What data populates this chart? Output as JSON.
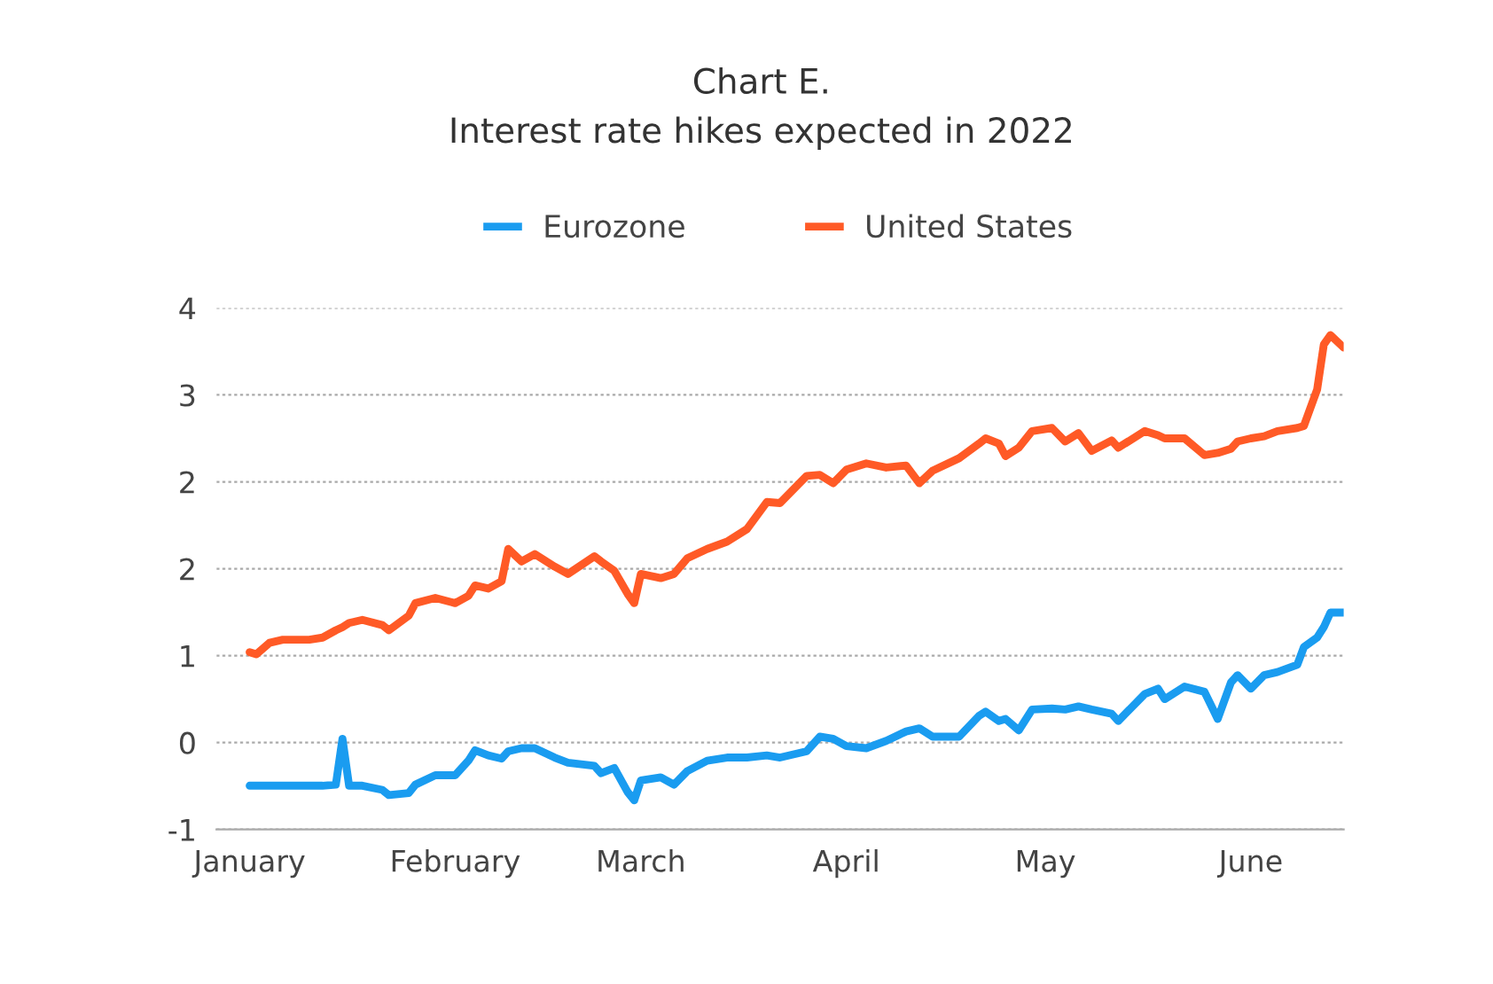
{
  "chart_data": {
    "type": "line",
    "title": "Chart E.",
    "subtitle": "Interest rate hikes expected in 2022",
    "x": [
      "2022-01-01",
      "2022-01-02",
      "2022-01-04",
      "2022-01-06",
      "2022-01-10",
      "2022-01-12",
      "2022-01-14",
      "2022-01-15",
      "2022-01-16",
      "2022-01-18",
      "2022-01-21",
      "2022-01-22",
      "2022-01-25",
      "2022-01-26",
      "2022-01-29",
      "2022-02-01",
      "2022-02-03",
      "2022-02-04",
      "2022-02-06",
      "2022-02-08",
      "2022-02-09",
      "2022-02-11",
      "2022-02-13",
      "2022-02-16",
      "2022-02-18",
      "2022-02-22",
      "2022-02-23",
      "2022-02-25",
      "2022-02-27",
      "2022-02-28",
      "2022-03-01",
      "2022-03-04",
      "2022-03-06",
      "2022-03-08",
      "2022-03-11",
      "2022-03-14",
      "2022-03-17",
      "2022-03-20",
      "2022-03-22",
      "2022-03-26",
      "2022-03-28",
      "2022-03-30",
      "2022-04-01",
      "2022-04-04",
      "2022-04-07",
      "2022-04-10",
      "2022-04-12",
      "2022-04-14",
      "2022-04-18",
      "2022-04-21",
      "2022-04-22",
      "2022-04-24",
      "2022-04-25",
      "2022-04-27",
      "2022-04-29",
      "2022-05-02",
      "2022-05-04",
      "2022-05-06",
      "2022-05-08",
      "2022-05-11",
      "2022-05-12",
      "2022-05-16",
      "2022-05-18",
      "2022-05-19",
      "2022-05-22",
      "2022-05-25",
      "2022-05-27",
      "2022-05-29",
      "2022-05-30",
      "2022-06-01",
      "2022-06-03",
      "2022-06-05",
      "2022-06-08",
      "2022-06-09",
      "2022-06-11",
      "2022-06-12",
      "2022-06-13",
      "2022-06-15"
    ],
    "series": [
      {
        "name": "Eurozone",
        "color": "#1a9cf0",
        "values": [
          -0.58,
          -0.58,
          -0.58,
          -0.58,
          -0.58,
          -0.58,
          -0.57,
          -0.13,
          -0.58,
          -0.58,
          -0.62,
          -0.67,
          -0.65,
          -0.57,
          -0.48,
          -0.48,
          -0.34,
          -0.24,
          -0.29,
          -0.32,
          -0.25,
          -0.22,
          -0.22,
          -0.31,
          -0.36,
          -0.39,
          -0.46,
          -0.41,
          -0.64,
          -0.72,
          -0.53,
          -0.5,
          -0.57,
          -0.44,
          -0.34,
          -0.31,
          -0.31,
          -0.29,
          -0.31,
          -0.25,
          -0.11,
          -0.13,
          -0.2,
          -0.22,
          -0.15,
          -0.06,
          -0.03,
          -0.11,
          -0.11,
          0.09,
          0.13,
          0.04,
          0.06,
          -0.05,
          0.15,
          0.16,
          0.15,
          0.18,
          0.15,
          0.11,
          0.04,
          0.3,
          0.35,
          0.25,
          0.37,
          0.32,
          0.06,
          0.41,
          0.48,
          0.35,
          0.48,
          0.51,
          0.58,
          0.75,
          0.84,
          0.94,
          1.08,
          1.08
        ]
      },
      {
        "name": "United States",
        "color": "#ff5a26",
        "values": [
          0.7,
          0.68,
          0.79,
          0.82,
          0.82,
          0.84,
          0.91,
          0.94,
          0.98,
          1.01,
          0.96,
          0.91,
          1.05,
          1.17,
          1.22,
          1.17,
          1.24,
          1.34,
          1.31,
          1.38,
          1.69,
          1.57,
          1.64,
          1.52,
          1.45,
          1.62,
          1.57,
          1.48,
          1.26,
          1.17,
          1.45,
          1.41,
          1.45,
          1.6,
          1.69,
          1.76,
          1.88,
          2.14,
          2.13,
          2.39,
          2.4,
          2.32,
          2.45,
          2.51,
          2.47,
          2.49,
          2.32,
          2.44,
          2.56,
          2.7,
          2.75,
          2.7,
          2.58,
          2.66,
          2.82,
          2.85,
          2.72,
          2.8,
          2.63,
          2.73,
          2.66,
          2.82,
          2.78,
          2.75,
          2.75,
          2.59,
          2.61,
          2.65,
          2.72,
          2.75,
          2.77,
          2.82,
          2.85,
          2.87,
          3.22,
          3.65,
          3.74,
          3.62
        ]
      }
    ],
    "xlim": [
      "2021-12-27",
      "2022-06-15"
    ],
    "xticks": [
      {
        "value": "2022-01-01",
        "label": "January"
      },
      {
        "value": "2022-02-01",
        "label": "February"
      },
      {
        "value": "2022-03-01",
        "label": "March"
      },
      {
        "value": "2022-04-01",
        "label": "April"
      },
      {
        "value": "2022-05-01",
        "label": "May"
      },
      {
        "value": "2022-06-01",
        "label": "June"
      }
    ],
    "ylim": [
      -1,
      4
    ],
    "yticks": [
      -1,
      {
        "value": -0.1667,
        "label": "0"
      },
      {
        "value": 0.6667,
        "label": "1"
      },
      {
        "value": 1.5,
        "label": "2"
      },
      {
        "value": 2.3333,
        "label": "2"
      },
      {
        "value": 3.1667,
        "label": "3"
      },
      4
    ],
    "grid": "y",
    "legend": "top",
    "marker": "none",
    "line_style": "solid"
  }
}
